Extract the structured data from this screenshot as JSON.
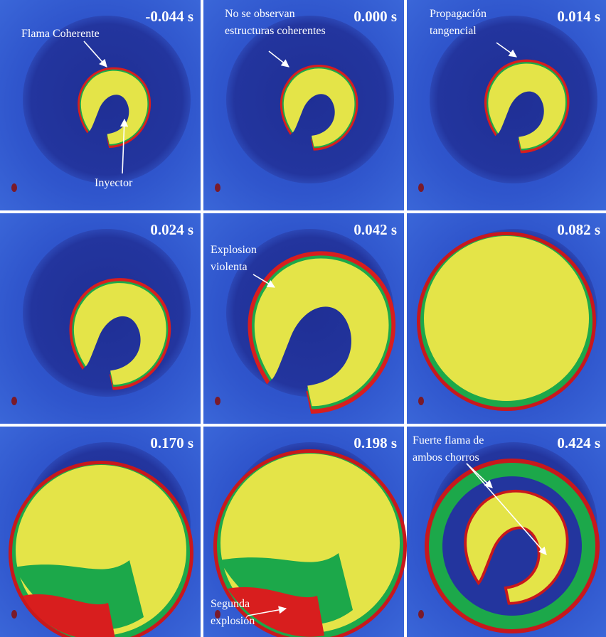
{
  "panels": [
    {
      "time": "-0.044 s",
      "annotations": [
        {
          "lines": [
            "Flama Coherente"
          ]
        },
        {
          "lines": [
            "Inyector"
          ]
        }
      ]
    },
    {
      "time": "0.000 s",
      "annotations": [
        {
          "lines": [
            "No se observan",
            "estructuras coherentes"
          ]
        }
      ]
    },
    {
      "time": "0.014 s",
      "annotations": [
        {
          "lines": [
            "Propagación",
            "tangencial"
          ]
        }
      ]
    },
    {
      "time": "0.024 s",
      "annotations": []
    },
    {
      "time": "0.042 s",
      "annotations": [
        {
          "lines": [
            "Explosion",
            "violenta"
          ]
        }
      ]
    },
    {
      "time": "0.082 s",
      "annotations": []
    },
    {
      "time": "0.170 s",
      "annotations": []
    },
    {
      "time": "0.198 s",
      "annotations": [
        {
          "lines": [
            "Segunda",
            "explosión"
          ]
        }
      ]
    },
    {
      "time": "0.424 s",
      "annotations": [
        {
          "lines": [
            "Fuerte flama de",
            "ambos chorros"
          ]
        }
      ]
    }
  ]
}
